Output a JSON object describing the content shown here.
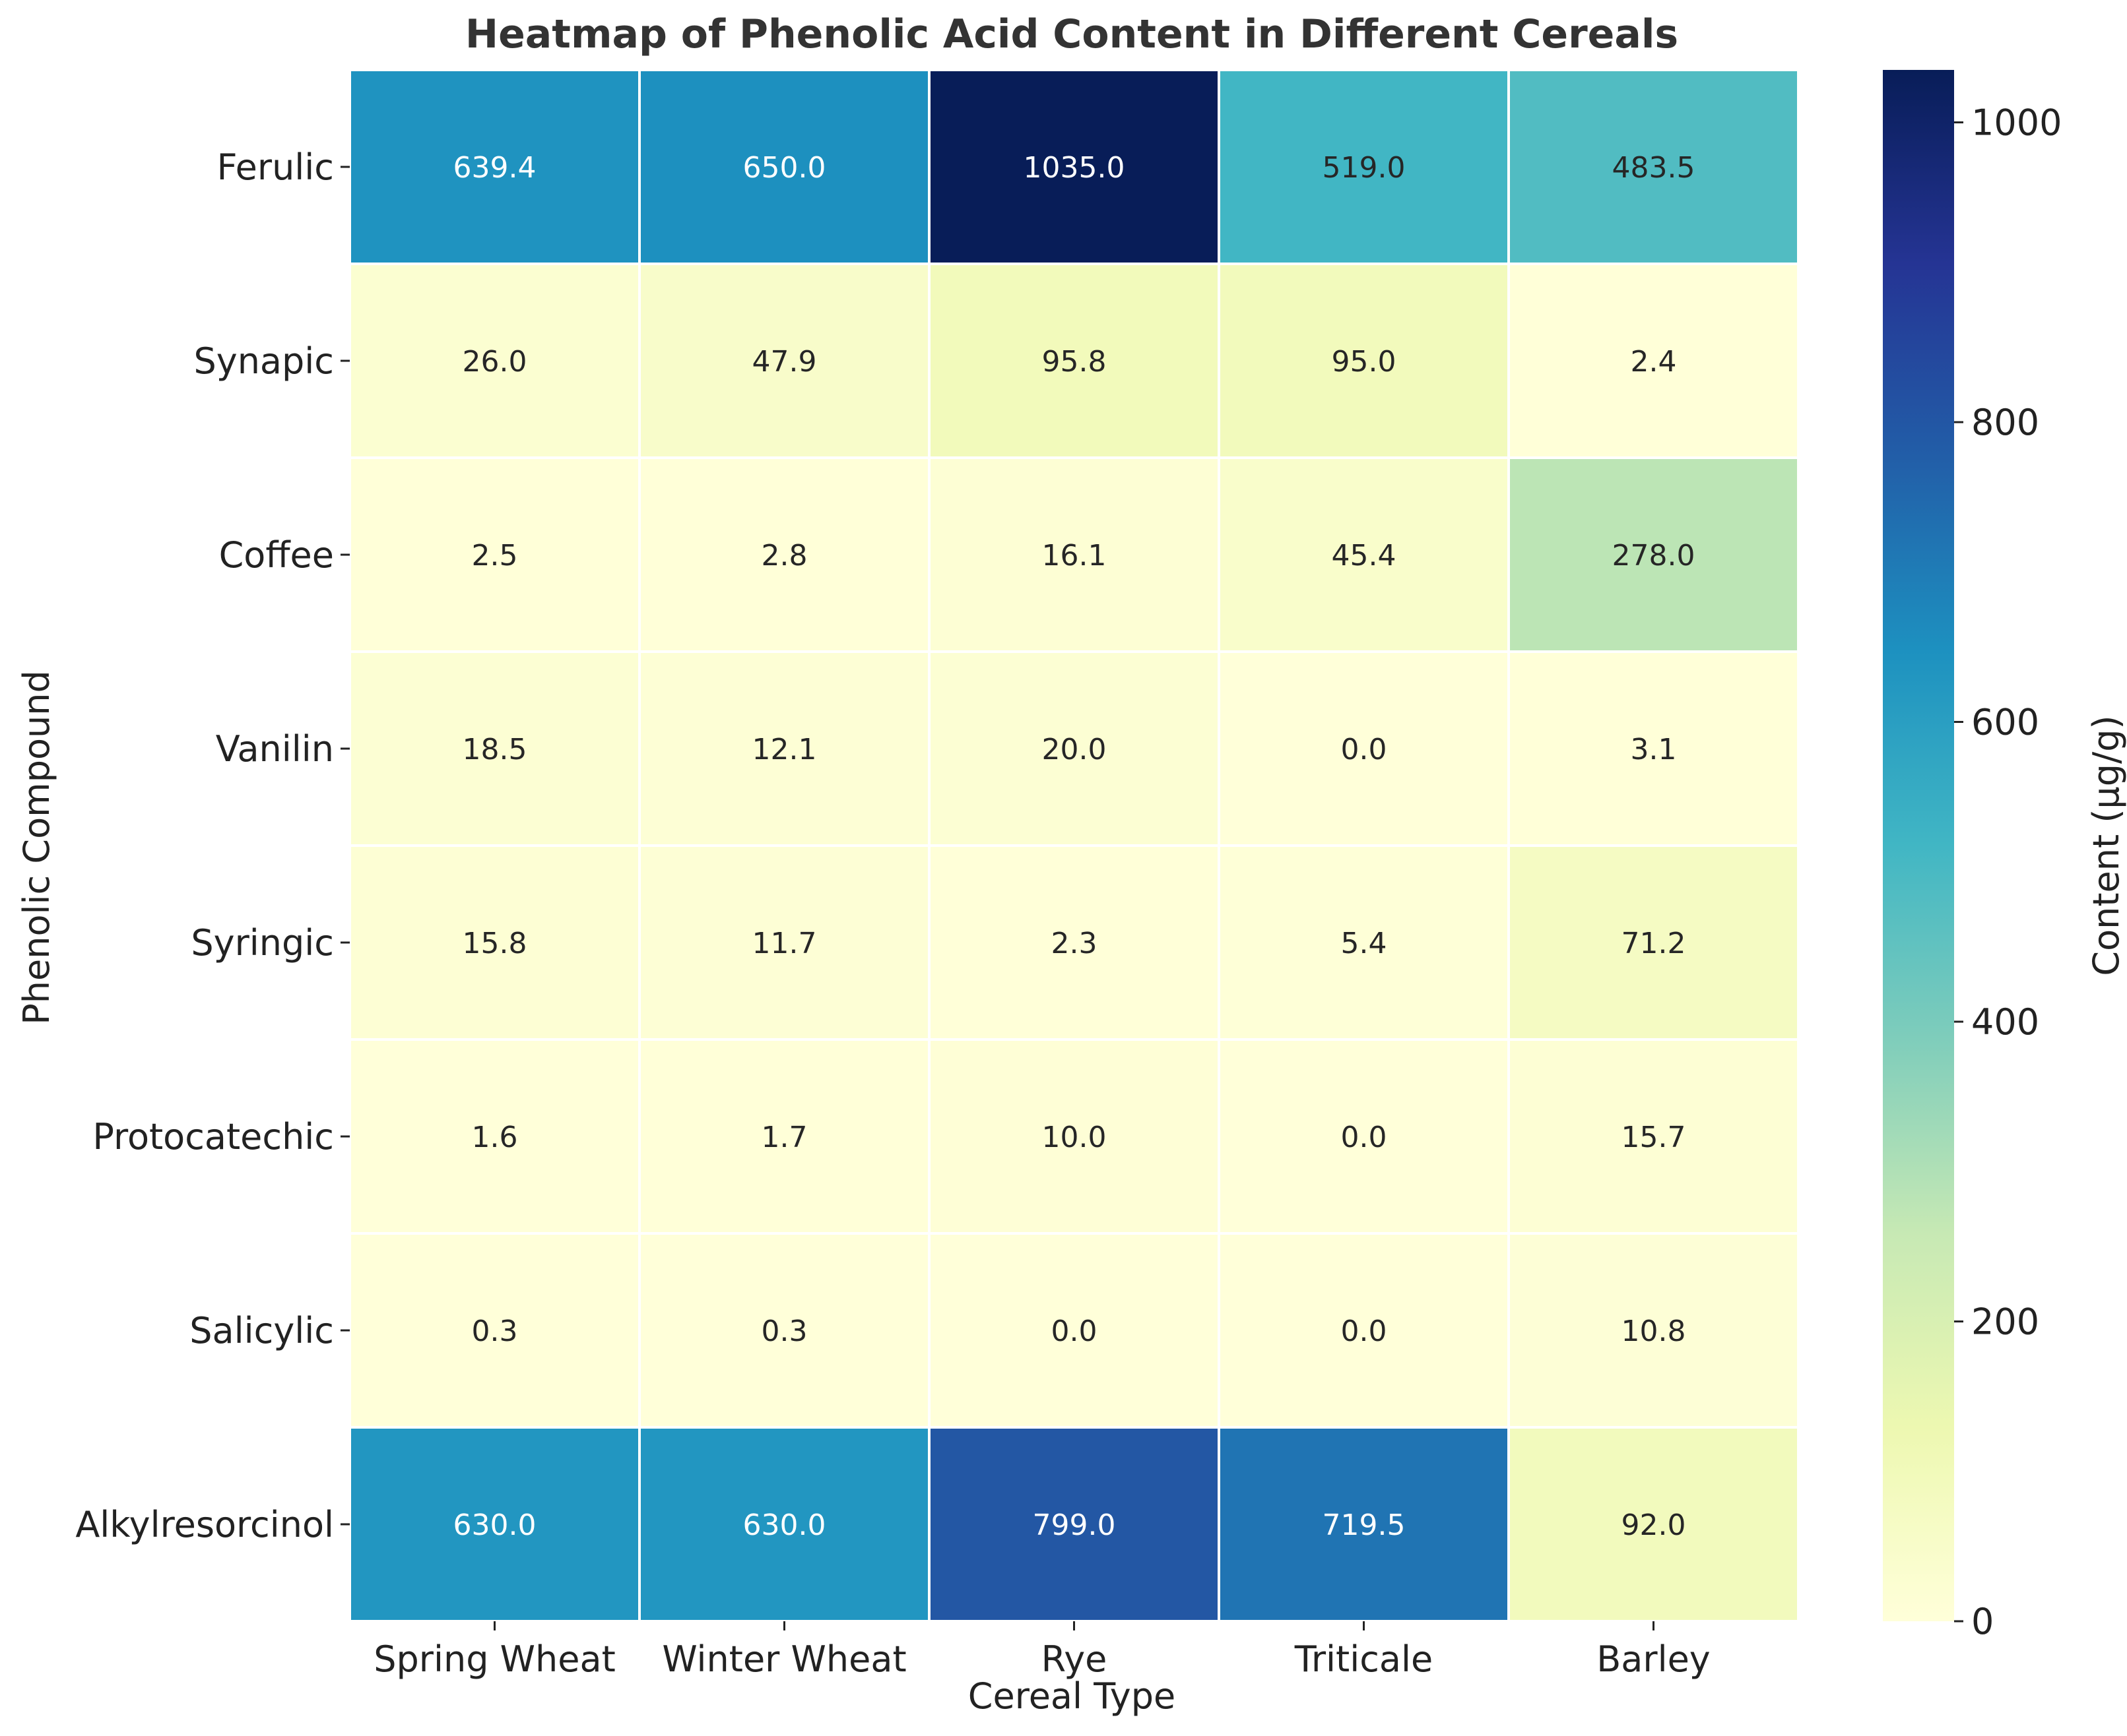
{
  "chart_data": {
    "type": "heatmap",
    "title": "Heatmap of Phenolic Acid Content in Different Cereals",
    "xlabel": "Cereal Type",
    "ylabel": "Phenolic Compound",
    "colorbar_label": "Content (μg/g)",
    "colormap": "YlGnBu",
    "colorbar_range": [
      0,
      1035
    ],
    "colorbar_ticks": [
      0,
      200,
      400,
      600,
      800,
      1000
    ],
    "columns": [
      "Spring Wheat",
      "Winter Wheat",
      "Rye",
      "Triticale",
      "Barley"
    ],
    "rows": [
      "Ferulic",
      "Synapic",
      "Coffee",
      "Vanilin",
      "Syringic",
      "Protocatechic",
      "Salicylic",
      "Alkylresorcinol"
    ],
    "values": [
      [
        639.4,
        650.0,
        1035.0,
        519.0,
        483.5
      ],
      [
        26.0,
        47.9,
        95.8,
        95.0,
        2.4
      ],
      [
        2.5,
        2.8,
        16.1,
        45.4,
        278.0
      ],
      [
        18.5,
        12.1,
        20.0,
        0.0,
        3.1
      ],
      [
        15.8,
        11.7,
        2.3,
        5.4,
        71.2
      ],
      [
        1.6,
        1.7,
        10.0,
        0.0,
        15.7
      ],
      [
        0.3,
        0.3,
        0.0,
        0.0,
        10.8
      ],
      [
        630.0,
        630.0,
        799.0,
        719.5,
        92.0
      ]
    ],
    "value_format": "one decimal",
    "grid": false
  }
}
